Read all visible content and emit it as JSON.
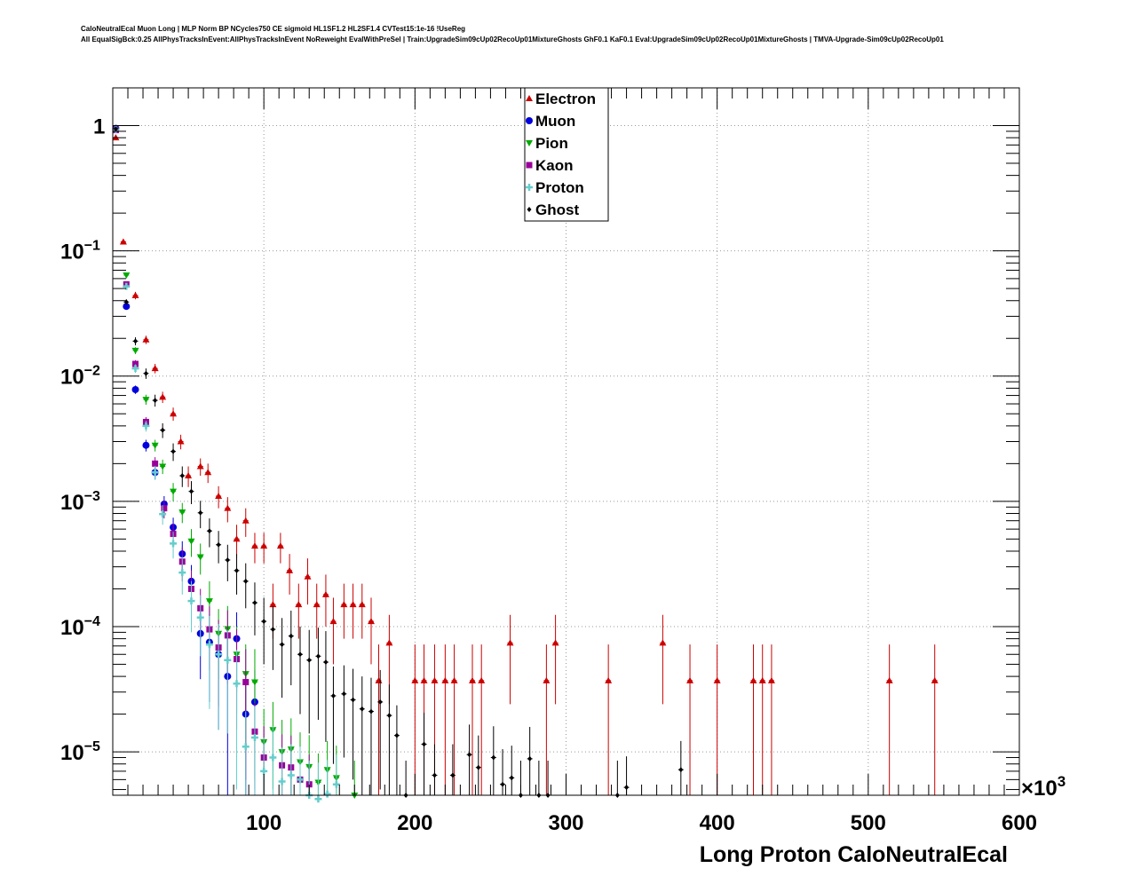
{
  "header": {
    "line1": "CaloNeutralEcal Muon Long | MLP Norm BP NCycles750 CE sigmoid HL1SF1.2 HL2SF1.4 CVTest15:1e-16 !UseReg",
    "line2": "All EqualSigBck:0.25 AllPhysTracksInEvent:AllPhysTracksInEvent NoReweight EvalWithPreSel | Train:UpgradeSim09cUp02RecoUp01MixtureGhosts GhF0.1 KaF0.1 Eval:UpgradeSim09cUp02RecoUp01MixtureGhosts | TMVA-Upgrade-Sim09cUp02RecoUp01"
  },
  "chart_data": {
    "type": "scatter",
    "title": "CaloNeutralEcal Muon Long",
    "xlabel": "Long Proton CaloNeutralEcal",
    "x_multiplier_label": "×10",
    "x_multiplier_exp": "3",
    "xlim": [
      0,
      600000
    ],
    "ylim": [
      4.5e-06,
      2.0
    ],
    "yscale": "log",
    "grid": true,
    "legend_position": "top-center",
    "x_ticks": [
      {
        "value": 100000,
        "label": "100"
      },
      {
        "value": 200000,
        "label": "200"
      },
      {
        "value": 300000,
        "label": "300"
      },
      {
        "value": 400000,
        "label": "400"
      },
      {
        "value": 500000,
        "label": "500"
      },
      {
        "value": 600000,
        "label": "600"
      }
    ],
    "y_ticks": [
      {
        "value": 1,
        "base": "1",
        "exp": ""
      },
      {
        "value": 0.1,
        "base": "10",
        "exp": "−1"
      },
      {
        "value": 0.01,
        "base": "10",
        "exp": "−2"
      },
      {
        "value": 0.001,
        "base": "10",
        "exp": "−3"
      },
      {
        "value": 0.0001,
        "base": "10",
        "exp": "−4"
      },
      {
        "value": 1e-05,
        "base": "10",
        "exp": "−5"
      }
    ],
    "series": [
      {
        "name": "Electron",
        "color": "#cc0000",
        "marker": "triangle-up",
        "points": [
          [
            2000,
            0.8,
            0.02
          ],
          [
            7000,
            0.118,
            0.005
          ],
          [
            15000,
            0.044,
            0.003
          ],
          [
            22000,
            0.0195,
            0.0015
          ],
          [
            28000,
            0.0115,
            0.001
          ],
          [
            33000,
            0.0068,
            0.0007
          ],
          [
            40000,
            0.005,
            0.0006
          ],
          [
            45000,
            0.003,
            0.0004
          ],
          [
            50000,
            0.0016,
            0.0003
          ],
          [
            58000,
            0.0019,
            0.0003
          ],
          [
            63000,
            0.0017,
            0.0003
          ],
          [
            70000,
            0.0011,
            0.00022
          ],
          [
            76000,
            0.00088,
            0.0002
          ],
          [
            82000,
            0.0005,
            0.00015
          ],
          [
            88000,
            0.0007,
            0.00018
          ],
          [
            94000,
            0.00044,
            0.00012
          ],
          [
            100000,
            0.00044,
            0.00012
          ],
          [
            111000,
            0.00044,
            0.00012
          ],
          [
            106000,
            0.00015,
            7e-05
          ],
          [
            117000,
            0.00028,
            0.0001
          ],
          [
            123000,
            0.00015,
            7e-05
          ],
          [
            129000,
            0.00025,
            0.0001
          ],
          [
            135000,
            0.00015,
            7e-05
          ],
          [
            141000,
            0.00018,
            8e-05
          ],
          [
            146000,
            0.00011,
            6e-05
          ],
          [
            153000,
            0.00015,
            7e-05
          ],
          [
            159000,
            0.00015,
            7e-05
          ],
          [
            165000,
            0.00015,
            7e-05
          ],
          [
            171000,
            0.00011,
            6e-05
          ],
          [
            176000,
            3.7e-05,
            3.5e-05
          ],
          [
            183000,
            7.4e-05,
            5e-05
          ],
          [
            200000,
            3.7e-05,
            3.5e-05
          ],
          [
            206000,
            3.7e-05,
            3.5e-05
          ],
          [
            213000,
            3.7e-05,
            3.5e-05
          ],
          [
            220000,
            3.7e-05,
            3.5e-05
          ],
          [
            226000,
            3.7e-05,
            3.5e-05
          ],
          [
            238000,
            3.7e-05,
            3.5e-05
          ],
          [
            244000,
            3.7e-05,
            3.5e-05
          ],
          [
            263000,
            7.4e-05,
            5e-05
          ],
          [
            287000,
            3.7e-05,
            3.5e-05
          ],
          [
            293000,
            7.4e-05,
            5e-05
          ],
          [
            328000,
            3.7e-05,
            3.5e-05
          ],
          [
            364000,
            7.4e-05,
            5e-05
          ],
          [
            382000,
            3.7e-05,
            3.5e-05
          ],
          [
            400000,
            3.7e-05,
            3.5e-05
          ],
          [
            424000,
            3.7e-05,
            3.5e-05
          ],
          [
            430000,
            3.7e-05,
            3.5e-05
          ],
          [
            436000,
            3.7e-05,
            3.5e-05
          ],
          [
            514000,
            3.7e-05,
            3.5e-05
          ],
          [
            544000,
            3.7e-05,
            3.5e-05
          ]
        ]
      },
      {
        "name": "Muon",
        "color": "#0000dd",
        "marker": "circle",
        "points": [
          [
            2000,
            0.95,
            0.02
          ],
          [
            9000,
            0.036,
            0.002
          ],
          [
            15000,
            0.0078,
            0.0006
          ],
          [
            22000,
            0.0028,
            0.0003
          ],
          [
            28000,
            0.0017,
            0.0002
          ],
          [
            34000,
            0.00095,
            0.00015
          ],
          [
            40000,
            0.00062,
            0.00012
          ],
          [
            46000,
            0.00038,
            0.0001
          ],
          [
            52000,
            0.00023,
            8e-05
          ],
          [
            58000,
            8.8e-05,
            5e-05
          ],
          [
            64000,
            7.5e-05,
            5e-05
          ],
          [
            70000,
            6e-05,
            4.5e-05
          ],
          [
            76000,
            4e-05,
            4e-05
          ],
          [
            82000,
            8e-05,
            5e-05
          ],
          [
            88000,
            2e-05,
            2e-05
          ],
          [
            94000,
            2.5e-05,
            2e-05
          ]
        ]
      },
      {
        "name": "Pion",
        "color": "#00aa00",
        "marker": "triangle-down",
        "points": [
          [
            2000,
            0.93,
            0.02
          ],
          [
            9000,
            0.064,
            0.003
          ],
          [
            15000,
            0.016,
            0.001
          ],
          [
            22000,
            0.0065,
            0.0006
          ],
          [
            28000,
            0.0028,
            0.0003
          ],
          [
            33000,
            0.0019,
            0.00025
          ],
          [
            40000,
            0.0012,
            0.0002
          ],
          [
            46000,
            0.00082,
            0.00015
          ],
          [
            52000,
            0.00048,
            0.00012
          ],
          [
            58000,
            0.00036,
            0.0001
          ],
          [
            64000,
            0.00016,
            7e-05
          ],
          [
            70000,
            8.8e-05,
            5e-05
          ],
          [
            76000,
            9.6e-05,
            5e-05
          ],
          [
            82000,
            6e-05,
            4e-05
          ],
          [
            88000,
            4.2e-05,
            3e-05
          ],
          [
            94000,
            3.6e-05,
            3e-05
          ],
          [
            100000,
            1.2e-05,
            1e-05
          ],
          [
            106000,
            1.5e-05,
            1e-05
          ],
          [
            112000,
            1e-05,
            8e-06
          ],
          [
            118000,
            1.05e-05,
            8e-06
          ],
          [
            124000,
            8.3e-06,
            6e-06
          ],
          [
            130000,
            7.6e-06,
            6e-06
          ],
          [
            136000,
            5.7e-06,
            4e-06
          ],
          [
            142000,
            7.2e-06,
            5e-06
          ],
          [
            148000,
            6.2e-06,
            5e-06
          ],
          [
            160000,
            4.5e-06,
            4e-06
          ]
        ]
      },
      {
        "name": "Kaon",
        "color": "#990099",
        "marker": "square",
        "points": [
          [
            2000,
            0.92,
            0.02
          ],
          [
            9000,
            0.054,
            0.003
          ],
          [
            15000,
            0.0125,
            0.0009
          ],
          [
            22000,
            0.0043,
            0.0004
          ],
          [
            28000,
            0.002,
            0.00025
          ],
          [
            34000,
            0.00088,
            0.00015
          ],
          [
            40000,
            0.00055,
            0.00012
          ],
          [
            46000,
            0.00033,
            0.0001
          ],
          [
            52000,
            0.0002,
            8e-05
          ],
          [
            58000,
            0.00014,
            6e-05
          ],
          [
            64000,
            9.5e-05,
            5e-05
          ],
          [
            70000,
            6.8e-05,
            4.5e-05
          ],
          [
            76000,
            8.5e-05,
            5e-05
          ],
          [
            82000,
            5.5e-05,
            4e-05
          ],
          [
            88000,
            3.6e-05,
            3e-05
          ],
          [
            94000,
            1.45e-05,
            1e-05
          ],
          [
            100000,
            9e-06,
            7e-06
          ],
          [
            112000,
            7.8e-06,
            6e-06
          ],
          [
            118000,
            7.5e-06,
            6e-06
          ],
          [
            124000,
            6e-06,
            5e-06
          ],
          [
            130000,
            5.5e-06,
            4e-06
          ]
        ]
      },
      {
        "name": "Proton",
        "color": "#66cccc",
        "marker": "plus",
        "points": [
          [
            2000,
            0.93,
            0.02
          ],
          [
            9000,
            0.052,
            0.003
          ],
          [
            15000,
            0.0115,
            0.0009
          ],
          [
            22000,
            0.004,
            0.0004
          ],
          [
            28000,
            0.0017,
            0.00022
          ],
          [
            33000,
            0.00079,
            0.00014
          ],
          [
            40000,
            0.00046,
            0.00011
          ],
          [
            46000,
            0.00027,
            9e-05
          ],
          [
            52000,
            0.00016,
            7e-05
          ],
          [
            58000,
            0.000118,
            6e-05
          ],
          [
            64000,
            7.2e-05,
            5e-05
          ],
          [
            70000,
            6e-05,
            4.5e-05
          ],
          [
            76000,
            5.4e-05,
            4e-05
          ],
          [
            82000,
            3.5e-05,
            3e-05
          ],
          [
            88000,
            1.1e-05,
            1e-05
          ],
          [
            94000,
            1.3e-05,
            1e-05
          ],
          [
            100000,
            7e-06,
            6e-06
          ],
          [
            106000,
            9e-06,
            7e-06
          ],
          [
            112000,
            5.8e-06,
            5e-06
          ],
          [
            118000,
            6.5e-06,
            5e-06
          ],
          [
            124000,
            6e-06,
            5e-06
          ],
          [
            130000,
            4.5e-06,
            4e-06
          ],
          [
            136000,
            4.2e-06,
            4e-06
          ],
          [
            142000,
            4.6e-06,
            4e-06
          ],
          [
            148000,
            5.5e-06,
            4e-06
          ]
        ]
      },
      {
        "name": "Ghost",
        "color": "#000000",
        "marker": "diamond",
        "points": [
          [
            2000,
            0.94,
            0.02
          ],
          [
            9000,
            0.039,
            0.002
          ],
          [
            15000,
            0.019,
            0.0014
          ],
          [
            22000,
            0.0105,
            0.001
          ],
          [
            28000,
            0.0064,
            0.0007
          ],
          [
            33000,
            0.0037,
            0.0005
          ],
          [
            40000,
            0.0025,
            0.0004
          ],
          [
            46000,
            0.0016,
            0.0003
          ],
          [
            52000,
            0.0012,
            0.00025
          ],
          [
            58000,
            0.00081,
            0.0002
          ],
          [
            64000,
            0.00058,
            0.00015
          ],
          [
            70000,
            0.00045,
            0.00013
          ],
          [
            76000,
            0.00034,
            0.00011
          ],
          [
            82000,
            0.00028,
            0.0001
          ],
          [
            88000,
            0.00023,
            9e-05
          ],
          [
            94000,
            0.000155,
            7e-05
          ],
          [
            100000,
            0.00011,
            6e-05
          ],
          [
            106000,
            9.5e-05,
            5e-05
          ],
          [
            112000,
            7.2e-05,
            4.5e-05
          ],
          [
            118000,
            8.4e-05,
            5e-05
          ],
          [
            124000,
            6e-05,
            4e-05
          ],
          [
            130000,
            5.4e-05,
            4e-05
          ],
          [
            136000,
            5.8e-05,
            4e-05
          ],
          [
            141000,
            5.2e-05,
            4e-05
          ],
          [
            146000,
            2.8e-05,
            2e-05
          ],
          [
            153000,
            2.9e-05,
            2e-05
          ],
          [
            159000,
            2.6e-05,
            2e-05
          ],
          [
            165000,
            2.2e-05,
            1.8e-05
          ],
          [
            171000,
            2.1e-05,
            1.8e-05
          ],
          [
            177000,
            2.5e-05,
            2e-05
          ],
          [
            183000,
            1.95e-05,
            1.5e-05
          ],
          [
            188000,
            1.35e-05,
            1e-05
          ],
          [
            194000,
            4.5e-06,
            4e-06
          ],
          [
            206000,
            1.15e-05,
            9e-06
          ],
          [
            213000,
            6.5e-06,
            5e-06
          ],
          [
            225000,
            6.5e-06,
            5e-06
          ],
          [
            236000,
            9.5e-06,
            7e-06
          ],
          [
            242000,
            7.5e-06,
            6e-06
          ],
          [
            252000,
            9e-06,
            7e-06
          ],
          [
            258000,
            5.5e-06,
            5e-06
          ],
          [
            264000,
            6.2e-06,
            5e-06
          ],
          [
            270000,
            4.5e-06,
            4e-06
          ],
          [
            276000,
            8.8e-06,
            7e-06
          ],
          [
            282000,
            4.5e-06,
            4e-06
          ],
          [
            288000,
            4.5e-06,
            4e-06
          ],
          [
            334000,
            4.5e-06,
            4e-06
          ],
          [
            340000,
            5.2e-06,
            4e-06
          ],
          [
            376000,
            7.2e-06,
            5e-06
          ]
        ]
      }
    ]
  }
}
